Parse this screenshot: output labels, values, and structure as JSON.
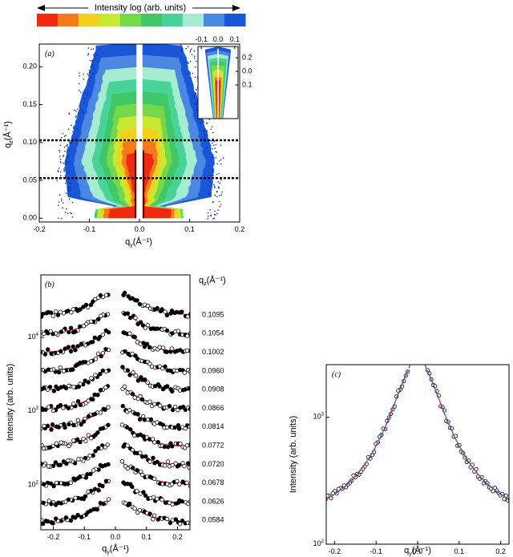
{
  "colorbar": {
    "label": "Intensity log (arb. units)",
    "colors": [
      "#ee2a12",
      "#f47a1a",
      "#f2d020",
      "#c8e832",
      "#74d84a",
      "#40c868",
      "#48d498",
      "#a6ecd2",
      "#4a88e2",
      "#1a56d8"
    ]
  },
  "chart_data": [
    {
      "id": "a",
      "panel_label": "(a)",
      "type": "heatmap",
      "xlabel_main": "q",
      "xlabel_sub": "y",
      "xlabel_unit": "(Å⁻¹)",
      "ylabel_main": "q",
      "ylabel_sub": "z",
      "ylabel_unit": "(Å⁻¹)",
      "xlim": [
        -0.2,
        0.2
      ],
      "ylim": [
        -0.005,
        0.23
      ],
      "xticks": [
        "-0.2",
        "-0.1",
        "0.0",
        "0.1",
        "0.2"
      ],
      "yticks": [
        "0.00",
        "0.05",
        "0.10",
        "0.15",
        "0.20"
      ],
      "dashed_lines_qz": [
        0.053,
        0.103
      ],
      "inset": {
        "xticks": [
          "-0.1",
          "0.0",
          "0.1"
        ],
        "yticks": [
          "0.2",
          "0.0",
          "0.1"
        ]
      }
    },
    {
      "id": "b",
      "panel_label": "(b)",
      "type": "scatter",
      "xlabel_main": "q",
      "xlabel_sub": "y",
      "xlabel_unit": "(Å⁻¹)",
      "ylabel": "Intensity (arb. units)",
      "yscale": "log",
      "xlim": [
        -0.24,
        0.24
      ],
      "xticks": [
        "-0.2",
        "-0.1",
        "0.0",
        "0.1",
        "0.2"
      ],
      "yticks": [
        {
          "base": "10",
          "exp": "2"
        },
        {
          "base": "10",
          "exp": "3"
        },
        {
          "base": "10",
          "exp": "4"
        }
      ],
      "series_header_main": "q",
      "series_header_sub": "z",
      "series_header_unit": "(Å⁻¹)",
      "qz_values": [
        "0.1095",
        "0.1054",
        "0.1002",
        "0.0960",
        "0.0908",
        "0.0866",
        "0.0814",
        "0.0772",
        "0.0720",
        "0.0678",
        "0.0626",
        "0.0584"
      ]
    },
    {
      "id": "c",
      "panel_label": "(c)",
      "type": "scatter",
      "xlabel_main": "q",
      "xlabel_sub": "y",
      "xlabel_unit": "(Å⁻¹)",
      "ylabel": "Intensity (arb. units)",
      "yscale": "log",
      "xlim": [
        -0.22,
        0.22
      ],
      "ylim": [
        100,
        2600
      ],
      "xticks": [
        "-0.2",
        "-0.1",
        "0.0",
        "0.1",
        "0.2"
      ],
      "yticks": [
        {
          "base": "10",
          "exp": "2"
        },
        {
          "base": "10",
          "exp": "3"
        }
      ]
    }
  ]
}
